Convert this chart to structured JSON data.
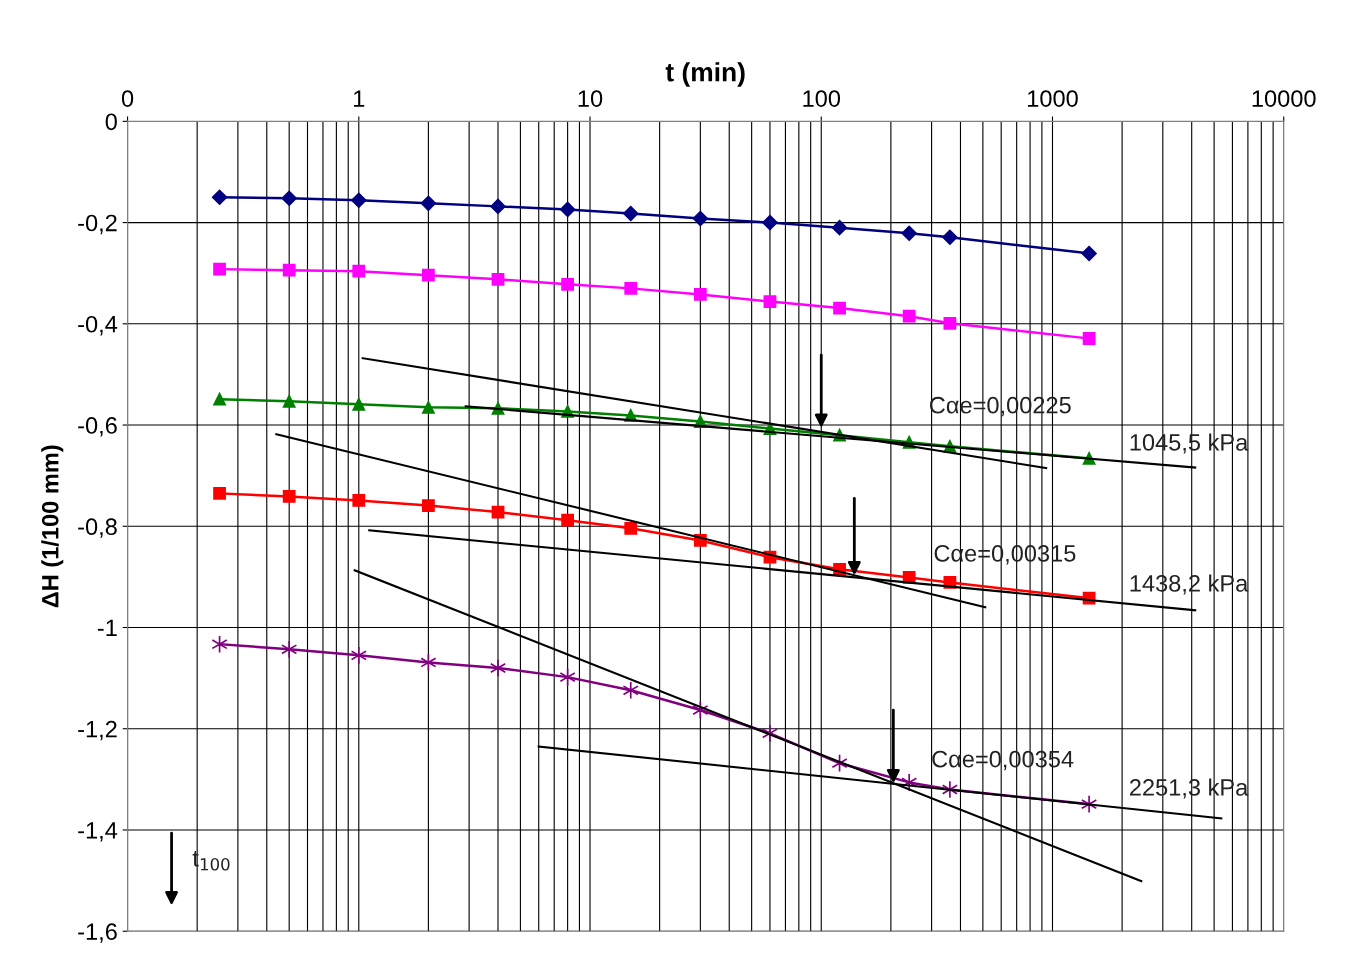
{
  "chart_data": {
    "type": "line",
    "xlabel": "t (min)",
    "ylabel": "ΔH (1/100 mm)",
    "log": "x",
    "grid": true,
    "xlim": [
      0.1,
      10000
    ],
    "xticks": [
      {
        "value": 0.1,
        "label": "0"
      },
      1,
      10,
      100,
      1000,
      10000
    ],
    "ylim": [
      -1.6,
      0
    ],
    "yticks": [
      {
        "value": -1.6,
        "label": "-1,6"
      },
      {
        "value": -1.4,
        "label": "-1,4"
      },
      {
        "value": -1.2,
        "label": "-1,2"
      },
      {
        "value": -1,
        "label": "-1"
      },
      {
        "value": -0.8,
        "label": "-0,8"
      },
      {
        "value": -0.6,
        "label": "-0,6"
      },
      {
        "value": -0.4,
        "label": "-0,4"
      },
      {
        "value": -0.2,
        "label": "-0,2"
      },
      {
        "value": 0,
        "label": "0"
      }
    ],
    "x": [
      0.25,
      0.5,
      1,
      2,
      4,
      8,
      15,
      30,
      60,
      120,
      240,
      360,
      1440
    ],
    "series": [
      {
        "color": "#000080",
        "marker": "diamond",
        "values": [
          -0.15,
          -0.152,
          -0.156,
          -0.162,
          -0.168,
          -0.174,
          -0.182,
          -0.192,
          -0.2,
          -0.21,
          -0.221,
          -0.229,
          -0.261
        ]
      },
      {
        "color": "#ff00ff",
        "marker": "square",
        "values": [
          -0.292,
          -0.294,
          -0.296,
          -0.304,
          -0.312,
          -0.322,
          -0.33,
          -0.342,
          -0.356,
          -0.369,
          -0.385,
          -0.399,
          -0.429
        ]
      },
      {
        "color": "#008000",
        "marker": "triangle",
        "values": [
          -0.549,
          -0.553,
          -0.559,
          -0.565,
          -0.567,
          -0.573,
          -0.581,
          -0.593,
          -0.607,
          -0.62,
          -0.634,
          -0.642,
          -0.666
        ]
      },
      {
        "color": "#ff0000",
        "marker": "square",
        "values": [
          -0.735,
          -0.741,
          -0.749,
          -0.759,
          -0.772,
          -0.788,
          -0.804,
          -0.828,
          -0.861,
          -0.885,
          -0.901,
          -0.911,
          -0.942
        ]
      },
      {
        "color": "#800080",
        "marker": "cross",
        "values": [
          -1.033,
          -1.043,
          -1.055,
          -1.069,
          -1.08,
          -1.098,
          -1.124,
          -1.163,
          -1.209,
          -1.268,
          -1.306,
          -1.32,
          -1.349
        ]
      },
      {
        "type": "line",
        "color": "#000000",
        "marker": "none",
        "x": [
          1.04,
          939
        ],
        "values": [
          -0.468,
          -0.685
        ]
      },
      {
        "type": "line",
        "color": "#000000",
        "marker": "none",
        "x": [
          2.9,
          4140
        ],
        "values": [
          -0.563,
          -0.684
        ]
      },
      {
        "type": "line",
        "color": "#000000",
        "marker": "none",
        "x": [
          0.44,
          512
        ],
        "values": [
          -0.618,
          -0.96
        ]
      },
      {
        "type": "line",
        "color": "#000000",
        "marker": "none",
        "x": [
          1.11,
          4140
        ],
        "values": [
          -0.808,
          -0.966
        ]
      },
      {
        "type": "line",
        "color": "#000000",
        "marker": "none",
        "x": [
          0.96,
          2420
        ],
        "values": [
          -0.887,
          -1.501
        ]
      },
      {
        "type": "line",
        "color": "#000000",
        "marker": "none",
        "x": [
          6.0,
          5370
        ],
        "values": [
          -1.235,
          -1.377
        ]
      },
      {
        "type": "line",
        "color": "#000000",
        "x": [
          100,
          100
        ],
        "values": [
          -0.462,
          -0.606
        ]
      },
      {
        "type": "line",
        "color": "#000000",
        "x": [
          139,
          139
        ],
        "values": [
          -0.745,
          -0.897
        ]
      },
      {
        "type": "line",
        "color": "#000000",
        "x": [
          205,
          205
        ],
        "values": [
          -1.163,
          -1.308
        ]
      },
      {
        "type": "line",
        "color": "#000000",
        "x": [
          0.155,
          0.155
        ],
        "values": [
          -1.406,
          -1.549
        ]
      }
    ],
    "annotations": [
      "Cαe=0,00225",
      "1045,5 kPa",
      "Cαe=0,00315",
      "1438,2 kPa",
      "Cαe=0,00354",
      "2251,3 kPa",
      "t$_{100}$"
    ]
  }
}
